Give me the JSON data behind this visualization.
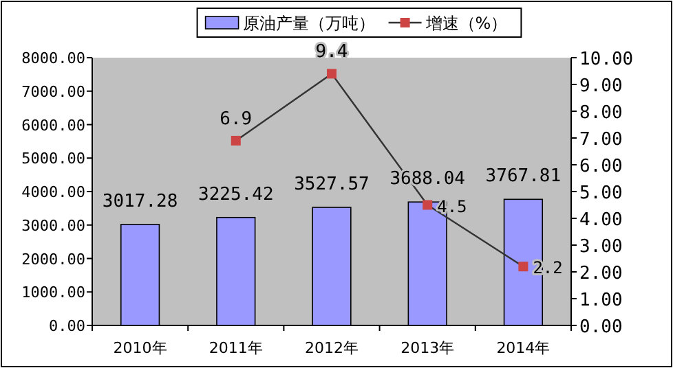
{
  "chart_data": {
    "type": "bar",
    "categories": [
      "2010年",
      "2011年",
      "2012年",
      "2013年",
      "2014年"
    ],
    "series": [
      {
        "name": "原油产量（万吨）",
        "color": "#9999ff",
        "values": [
          3017.28,
          3225.42,
          3527.57,
          3688.04,
          3767.81
        ]
      },
      {
        "name": "增速（%）",
        "type": "line",
        "axis": "y2",
        "color": "#cc4444",
        "marker": "square",
        "values": [
          null,
          6.9,
          9.4,
          4.5,
          2.2
        ]
      }
    ],
    "ylim": [
      0,
      8000
    ],
    "yticks": [
      {
        "value": 0,
        "label": "0.00"
      },
      {
        "value": 1000,
        "label": "1000.00"
      },
      {
        "value": 2000,
        "label": "2000.00"
      },
      {
        "value": 3000,
        "label": "3000.00"
      },
      {
        "value": 4000,
        "label": "4000.00"
      },
      {
        "value": 5000,
        "label": "5000.00"
      },
      {
        "value": 6000,
        "label": "6000.00"
      },
      {
        "value": 7000,
        "label": "7000.00"
      },
      {
        "value": 8000,
        "label": "8000.00"
      }
    ],
    "y2lim": [
      0,
      10
    ],
    "y2ticks": [
      {
        "value": 0,
        "label": "0.00"
      },
      {
        "value": 1,
        "label": "1.00"
      },
      {
        "value": 2,
        "label": "2.00"
      },
      {
        "value": 3,
        "label": "3.00"
      },
      {
        "value": 4,
        "label": "4.00"
      },
      {
        "value": 5,
        "label": "5.00"
      },
      {
        "value": 6,
        "label": "6.00"
      },
      {
        "value": 7,
        "label": "7.00"
      },
      {
        "value": 8,
        "label": "8.00"
      },
      {
        "value": 9,
        "label": "9.00"
      },
      {
        "value": 10,
        "label": "10.00"
      }
    ],
    "data_labels": true,
    "legend": "top",
    "grid": false
  }
}
